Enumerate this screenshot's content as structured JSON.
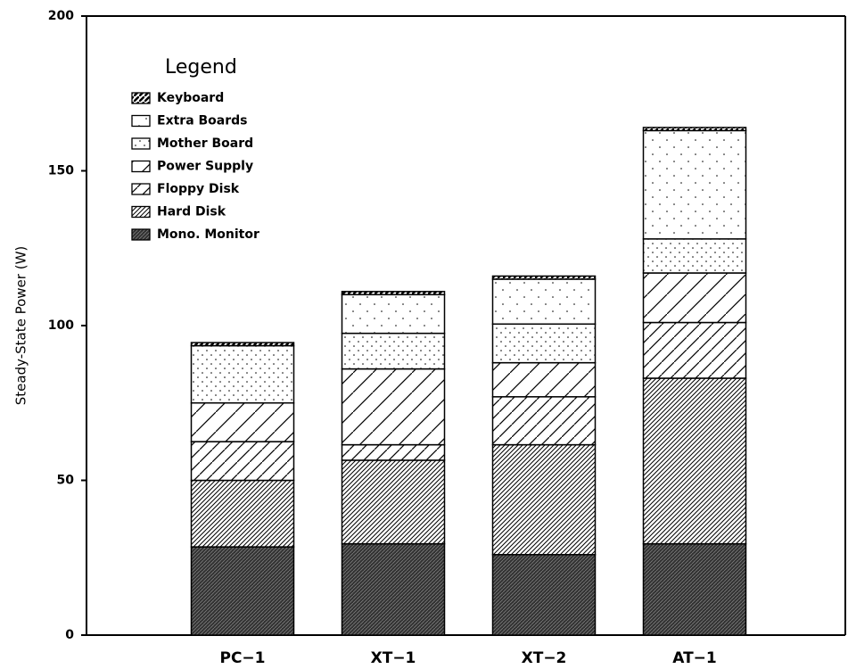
{
  "chart_data": {
    "type": "stacked-bar",
    "y_label": "Steady-State Power (W)",
    "legend_title": "Legend",
    "categories": [
      "PC−1",
      "XT−1",
      "XT−2",
      "AT−1"
    ],
    "series": [
      {
        "name": "Mono. Monitor",
        "color": "#000000",
        "pattern": "dark",
        "values": [
          28.5,
          29.5,
          26,
          29.5
        ]
      },
      {
        "name": "Hard Disk",
        "color": "#000000",
        "pattern": "dense-hatch",
        "values": [
          21.5,
          27,
          35.5,
          53.5
        ]
      },
      {
        "name": "Floppy Disk",
        "color": "#000000",
        "pattern": "hatch",
        "values": [
          12.5,
          5,
          15.5,
          18
        ]
      },
      {
        "name": "Power Supply",
        "color": "#000000",
        "pattern": "sparse-hatch",
        "values": [
          12.5,
          24.5,
          11,
          16
        ]
      },
      {
        "name": "Mother Board",
        "color": "#000000",
        "pattern": "dots",
        "values": [
          18.5,
          11.5,
          12.5,
          11
        ]
      },
      {
        "name": "Extra Boards",
        "color": "#000000",
        "pattern": "sparse-dots",
        "values": [
          0,
          12.5,
          14.5,
          35
        ]
      },
      {
        "name": "Keyboard",
        "color": "#000000",
        "pattern": "thick-hatch",
        "values": [
          1,
          1,
          1,
          1
        ]
      }
    ],
    "ylim": [
      0,
      200
    ],
    "yticks": [
      0,
      50,
      100,
      150,
      200
    ]
  }
}
